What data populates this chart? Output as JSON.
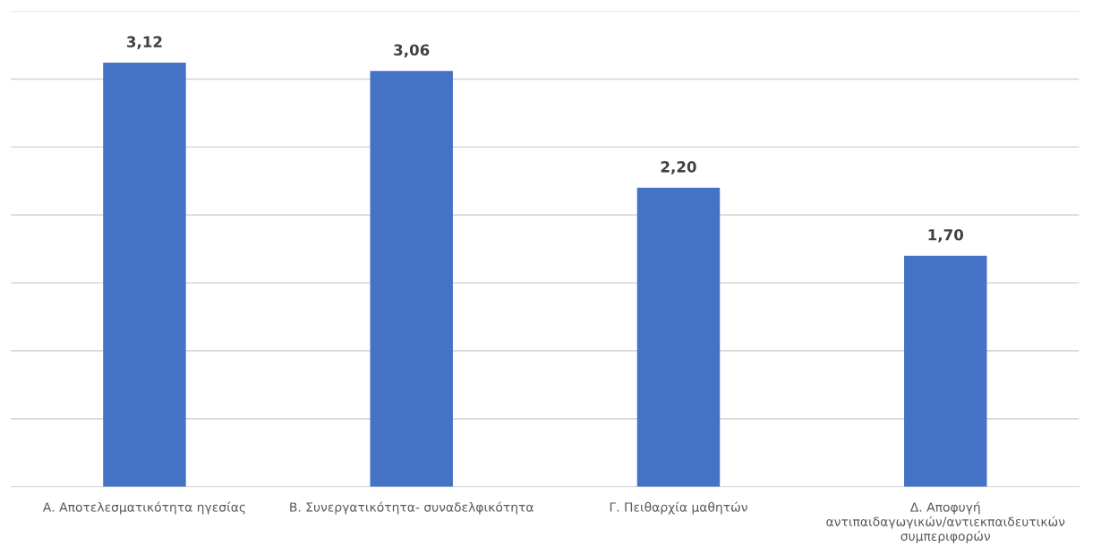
{
  "chart_data": {
    "type": "bar",
    "categories": [
      "Α. Αποτελεσματικότητα ηγεσίας",
      "Β. Συνεργατικότητα- συναδελφικότητα",
      "Γ. Πειθαρχία μαθητών",
      "Δ. Αποφυγή\nαντιπαιδαγωγικών/αντιεκπαιδευτικών\nσυμπεριφορών"
    ],
    "values": [
      3.12,
      3.06,
      2.2,
      1.7
    ],
    "value_labels": [
      "3,12",
      "3,06",
      "2,20",
      "1,70"
    ],
    "color": "#4472c4",
    "ylim": [
      0,
      3.5
    ],
    "yticks": [
      0,
      0.5,
      1,
      1.5,
      2,
      2.5,
      3,
      3.5
    ],
    "grid": "y",
    "tick_labels": "x"
  }
}
